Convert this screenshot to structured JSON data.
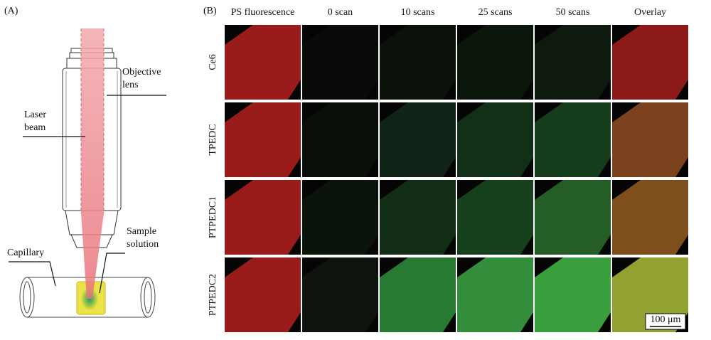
{
  "panel_a": {
    "label": "(A)",
    "objective": [
      "Objective",
      "lens"
    ],
    "laser": [
      "Laser",
      "beam"
    ],
    "sample": [
      "Sample",
      "solution"
    ],
    "capillary": "Capillary"
  },
  "panel_b": {
    "label": "(B)",
    "columns": [
      "PS fluorescence",
      "0 scan",
      "10 scans",
      "25 scans",
      "50 scans",
      "Overlay"
    ],
    "rows": [
      "Ce6",
      "TPEDC",
      "PTPEDC1",
      "PTPEDC2"
    ],
    "scale_bar": "100 μm"
  }
}
